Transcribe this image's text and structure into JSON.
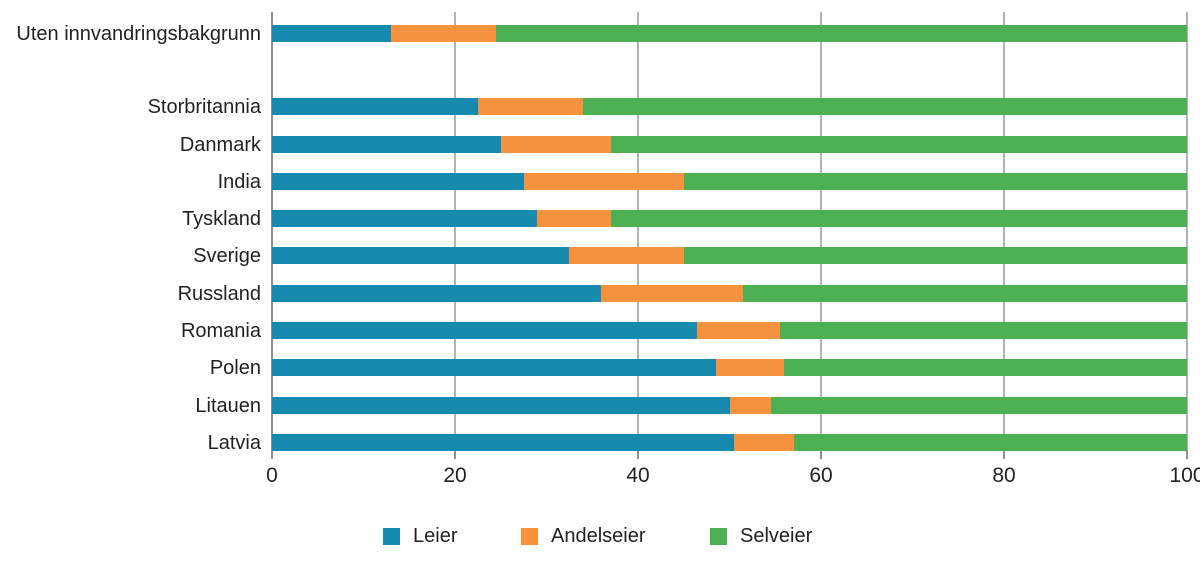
{
  "chart_data": {
    "type": "bar",
    "orientation": "horizontal",
    "stacked": true,
    "title": "",
    "categories": [
      "Uten innvandringsbakgrunn",
      "Storbritannia",
      "Danmark",
      "India",
      "Tyskland",
      "Sverige",
      "Russland",
      "Romania",
      "Polen",
      "Litauen",
      "Latvia"
    ],
    "gap_after_first_category": true,
    "series": [
      {
        "name": "Leier",
        "color": "#1589ae",
        "values": [
          13,
          22.5,
          25,
          27.5,
          29,
          32.5,
          36,
          46.5,
          48.5,
          50,
          50.5
        ]
      },
      {
        "name": "Andelseier",
        "color": "#f6913d",
        "values": [
          11.5,
          11.5,
          12,
          17.5,
          8,
          12.5,
          15.5,
          9,
          7.5,
          4.5,
          6.5
        ]
      },
      {
        "name": "Selveier",
        "color": "#4cb052",
        "values": [
          75.5,
          66,
          63,
          55,
          63,
          55,
          48.5,
          44.5,
          44,
          45.5,
          43
        ]
      }
    ],
    "x_axis": {
      "ticks": [
        0,
        20,
        40,
        60,
        80,
        100
      ],
      "range": [
        0,
        100
      ]
    },
    "legend": {
      "position": "bottom",
      "entries": [
        "Leier",
        "Andelseier",
        "Selveier"
      ]
    },
    "grid": true,
    "colors": {
      "gridline": "#b3b3b3",
      "axis_line": "#8f8f8f",
      "text": "#231f20",
      "background": "#ffffff"
    }
  }
}
